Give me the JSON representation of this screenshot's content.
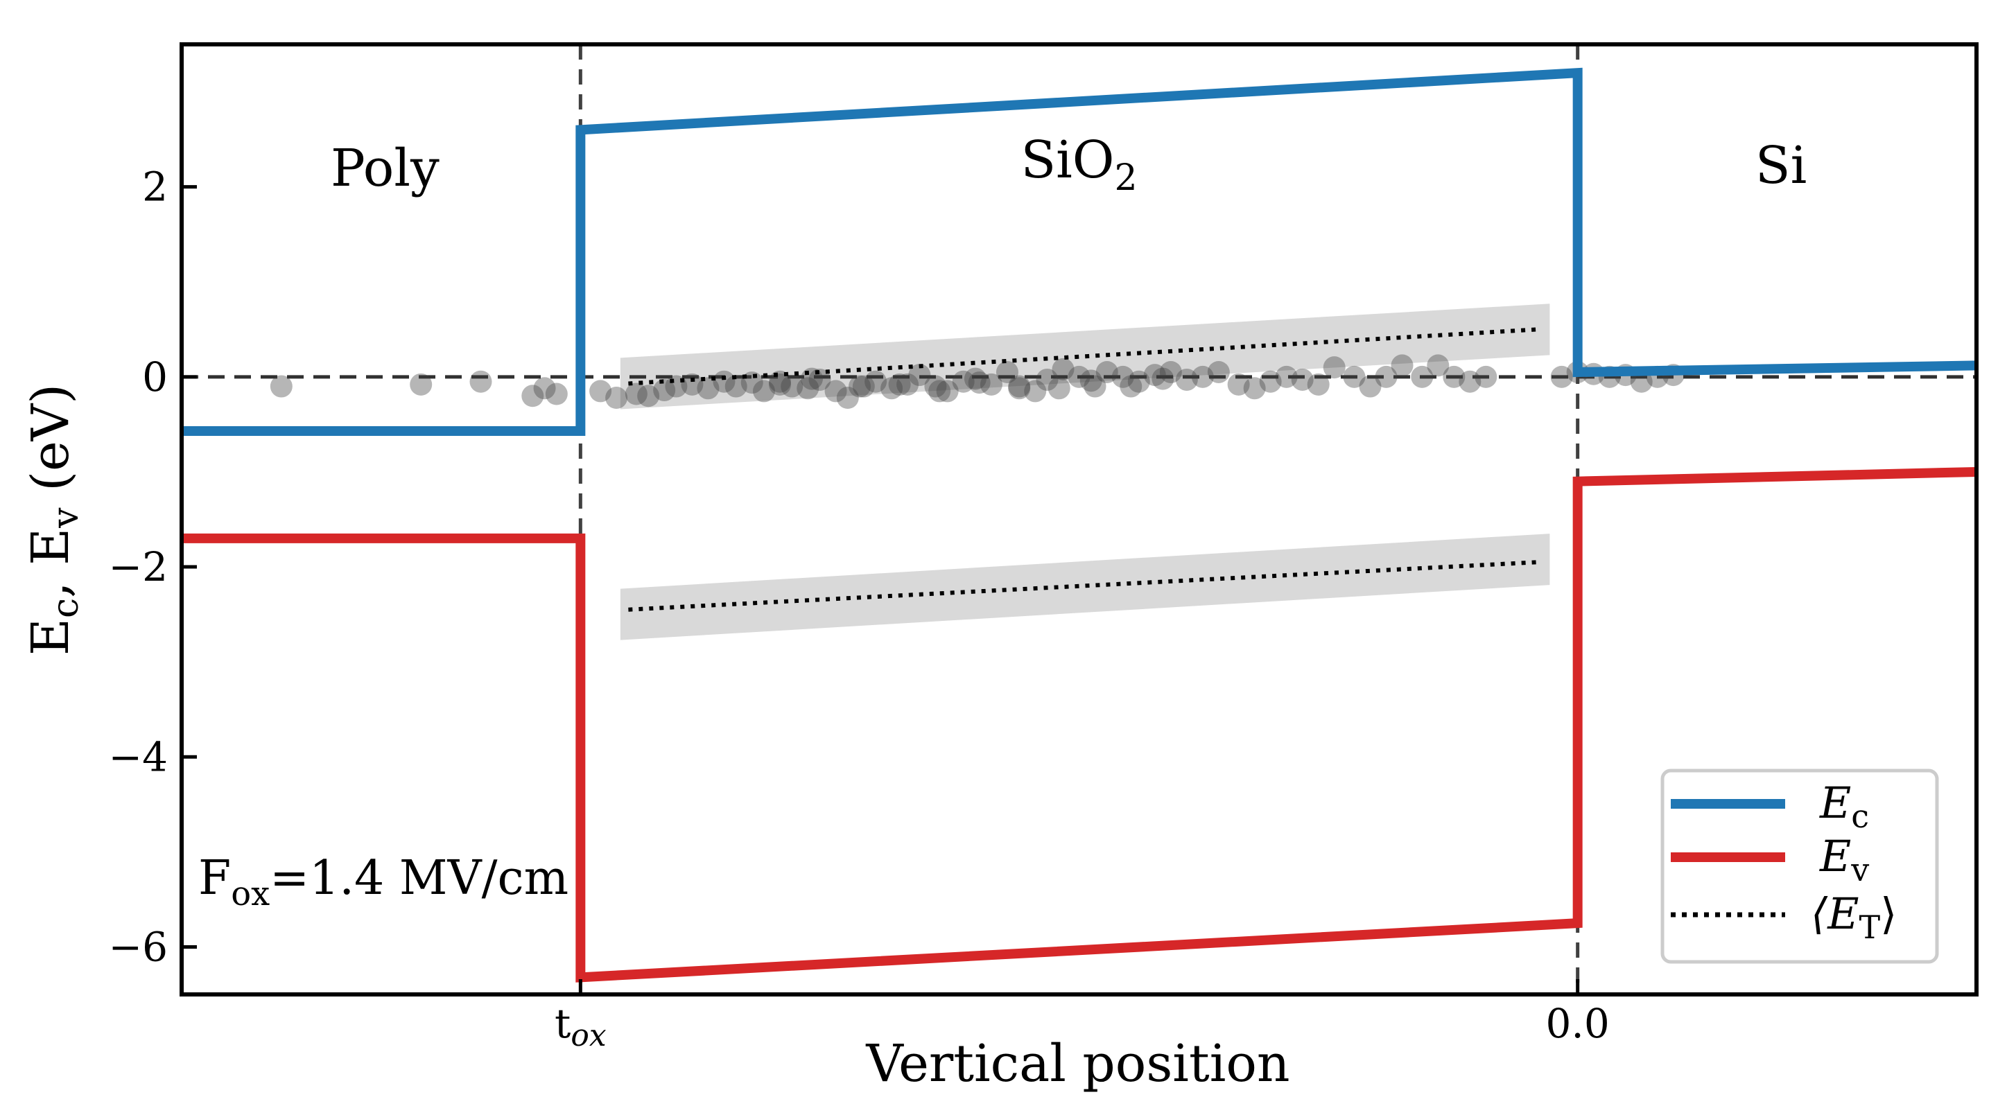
{
  "chart_data": {
    "type": "line",
    "xlabel": "Vertical position",
    "ylabel": "E",
    "ylabel_parts": {
      "sub1": "c",
      "sep": ", E",
      "sub2": "v",
      "unit": " (eV)"
    },
    "xlim": [
      -0.35,
      0.1
    ],
    "ylim": [
      -6.5,
      3.5
    ],
    "yticks": [
      2,
      0,
      -2,
      -4,
      -6
    ],
    "ytick_labels": [
      "2",
      "0",
      "−2",
      "−4",
      "−6"
    ],
    "xticks": [
      {
        "value": -0.25,
        "label_main": "t",
        "label_sub": "ox"
      },
      {
        "value": 0.0,
        "label_main": "0.0",
        "label_sub": ""
      }
    ],
    "vlines": [
      -0.25,
      0.0
    ],
    "hline": 0,
    "grid": false,
    "legend_position": "lower right",
    "regions": [
      {
        "label": "Poly",
        "x": -0.299
      },
      {
        "label_main": "SiO",
        "label_sub": "2",
        "x": -0.125
      },
      {
        "label": "Si",
        "x": 0.051
      }
    ],
    "annotation": {
      "main": "F",
      "sub": "ox",
      "rest": "=1.4 MV/cm"
    },
    "colors": {
      "Ec": "#1f77b4",
      "Ev": "#d62728",
      "ET": "#000000",
      "band": "#d9d9d9",
      "traps": "#404040"
    },
    "series": [
      {
        "key": "Ec",
        "name_main": "E",
        "name_sub": "c",
        "style": "solid",
        "x": [
          -0.35,
          -0.25,
          -0.25,
          0.0,
          0.0,
          0.1
        ],
        "y": [
          -0.57,
          -0.57,
          2.6,
          3.2,
          0.05,
          0.12
        ]
      },
      {
        "key": "Ev",
        "name_main": "E",
        "name_sub": "v",
        "style": "solid",
        "x": [
          -0.35,
          -0.25,
          -0.25,
          0.0,
          0.0,
          0.1
        ],
        "y": [
          -1.7,
          -1.7,
          -6.32,
          -5.75,
          -1.1,
          -1.0
        ]
      },
      {
        "key": "ET",
        "name": "⟨E",
        "name_sub": "T",
        "name_end": "⟩",
        "style": "dotted",
        "segments": [
          {
            "x": [
              -0.238,
              -0.01
            ],
            "y": [
              -0.07,
              0.5
            ]
          },
          {
            "x": [
              -0.238,
              -0.01
            ],
            "y": [
              -2.45,
              -1.95
            ]
          }
        ]
      }
    ],
    "shaded_bands": [
      {
        "x": [
          -0.24,
          -0.007
        ],
        "y": [
          -0.07,
          0.5
        ],
        "half_height": 0.27
      },
      {
        "x": [
          -0.24,
          -0.007
        ],
        "y": [
          -2.5,
          -1.92
        ],
        "half_height": 0.27
      }
    ],
    "traps": {
      "x": [
        -0.325,
        -0.29,
        -0.275,
        -0.262,
        -0.259,
        -0.256,
        -0.245,
        -0.241,
        -0.236,
        -0.233,
        -0.229,
        -0.226,
        -0.222,
        -0.218,
        -0.214,
        -0.211,
        -0.207,
        -0.204,
        -0.2,
        -0.197,
        -0.193,
        -0.19,
        -0.186,
        -0.183,
        -0.179,
        -0.176,
        -0.172,
        -0.168,
        -0.165,
        -0.161,
        -0.158,
        -0.154,
        -0.151,
        -0.147,
        -0.143,
        -0.14,
        -0.136,
        -0.133,
        -0.129,
        -0.125,
        -0.121,
        -0.118,
        -0.114,
        -0.11,
        -0.106,
        -0.102,
        -0.098,
        -0.094,
        -0.09,
        -0.085,
        -0.081,
        -0.077,
        -0.073,
        -0.069,
        -0.065,
        -0.061,
        -0.056,
        -0.052,
        -0.048,
        -0.044,
        -0.039,
        -0.035,
        -0.031,
        -0.027,
        -0.023,
        -0.2,
        -0.192,
        -0.18,
        -0.17,
        -0.16,
        -0.15,
        -0.14,
        -0.13,
        -0.122,
        -0.112,
        -0.104,
        -0.004,
        0.0,
        0.004,
        0.008,
        0.012,
        0.016,
        0.02,
        0.024
      ],
      "y": [
        -0.1,
        -0.08,
        -0.05,
        -0.2,
        -0.12,
        -0.18,
        -0.15,
        -0.22,
        -0.18,
        -0.2,
        -0.14,
        -0.1,
        -0.08,
        -0.12,
        -0.05,
        -0.1,
        -0.06,
        -0.15,
        -0.08,
        -0.1,
        -0.12,
        -0.03,
        -0.15,
        -0.22,
        -0.1,
        -0.05,
        -0.12,
        -0.08,
        0.02,
        -0.1,
        -0.15,
        -0.05,
        -0.02,
        -0.08,
        0.05,
        -0.12,
        -0.15,
        -0.03,
        0.08,
        0.0,
        -0.1,
        0.05,
        0.0,
        -0.05,
        0.02,
        0.05,
        -0.03,
        0.0,
        0.05,
        -0.08,
        -0.12,
        -0.05,
        0.0,
        -0.03,
        -0.08,
        0.1,
        0.0,
        -0.1,
        0.0,
        0.12,
        0.0,
        0.12,
        0.0,
        -0.05,
        0.0,
        -0.05,
        -0.02,
        -0.1,
        -0.08,
        -0.15,
        -0.06,
        -0.1,
        -0.12,
        -0.04,
        -0.1,
        -0.02,
        0.0,
        0.05,
        0.03,
        0.0,
        0.02,
        -0.05,
        0.0,
        0.02
      ]
    }
  }
}
